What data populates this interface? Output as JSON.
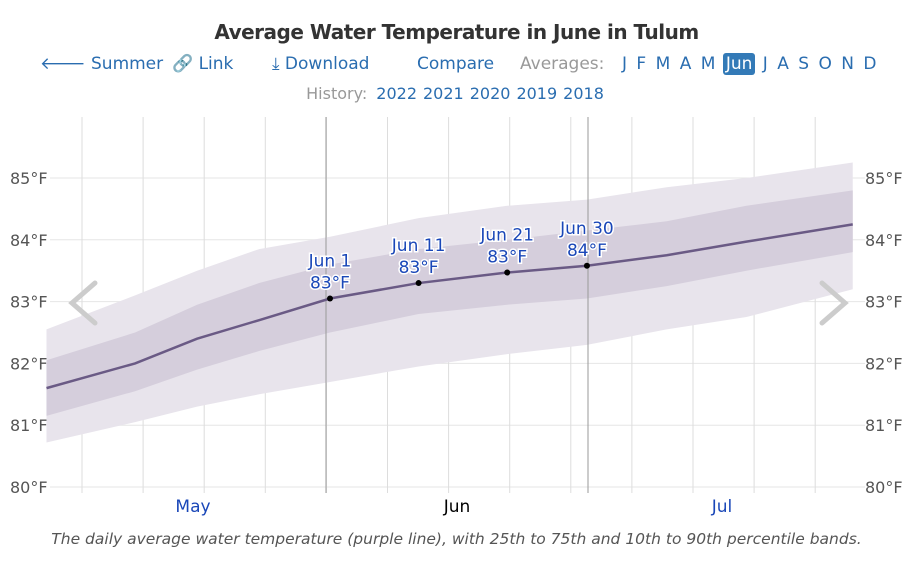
{
  "title": "Average Water Temperature in June in Tulum",
  "nav": {
    "back_label": "Summer",
    "link_label": "Link",
    "download_label": "Download",
    "compare_label": "Compare",
    "averages_label": "Averages:",
    "months": [
      "J",
      "F",
      "M",
      "A",
      "M",
      "Jun",
      "J",
      "A",
      "S",
      "O",
      "N",
      "D"
    ],
    "selected_month": "Jun"
  },
  "history": {
    "label": "History:",
    "years": [
      "2022",
      "2021",
      "2020",
      "2019",
      "2018"
    ]
  },
  "icons": {
    "back": "arrow-left-icon",
    "link": "link-icon",
    "download": "download-icon",
    "prev": "chevron-left-icon",
    "next": "chevron-right-icon"
  },
  "caption": "The daily average water temperature (purple line), with 25th to 75th and 10th to 90th percentile bands.",
  "chart_data": {
    "type": "area",
    "ylim": [
      80,
      85.5
    ],
    "y_ticks": [
      "80°F",
      "81°F",
      "82°F",
      "83°F",
      "84°F",
      "85°F"
    ],
    "x_month_labels": [
      "May",
      "Jun",
      "Jul"
    ],
    "x": [
      "Apr 30",
      "May 10",
      "May 17",
      "May 24",
      "Jun 1",
      "Jun 11",
      "Jun 21",
      "Jun 30",
      "Jul 9",
      "Jul 18",
      "Jul 30"
    ],
    "mean": [
      81.6,
      82.0,
      82.4,
      82.7,
      83.05,
      83.3,
      83.47,
      83.58,
      83.75,
      83.97,
      84.25
    ],
    "p10": [
      80.72,
      81.05,
      81.3,
      81.5,
      81.7,
      81.95,
      82.15,
      82.3,
      82.55,
      82.75,
      83.2
    ],
    "p25": [
      81.15,
      81.55,
      81.9,
      82.2,
      82.5,
      82.8,
      82.95,
      83.05,
      83.25,
      83.5,
      83.8
    ],
    "p75": [
      82.05,
      82.5,
      82.95,
      83.3,
      83.6,
      83.85,
      84.0,
      84.15,
      84.3,
      84.55,
      84.8
    ],
    "p90": [
      82.55,
      83.1,
      83.5,
      83.85,
      84.05,
      84.35,
      84.55,
      84.65,
      84.85,
      85.0,
      85.25
    ],
    "annotations": [
      {
        "date": "Jun 1",
        "label": "Jun 1",
        "value": "83°F",
        "y": 83.05
      },
      {
        "date": "Jun 11",
        "label": "Jun 11",
        "value": "83°F",
        "y": 83.3
      },
      {
        "date": "Jun 21",
        "label": "Jun 21",
        "value": "83°F",
        "y": 83.47
      },
      {
        "date": "Jun 30",
        "label": "Jun 30",
        "value": "84°F",
        "y": 83.58
      }
    ],
    "colors": {
      "line": "#6a5a85",
      "band_25_75": "#d5cedc",
      "band_10_90": "#e8e4ec",
      "annotation": "#1a47b8"
    },
    "grid": true
  }
}
